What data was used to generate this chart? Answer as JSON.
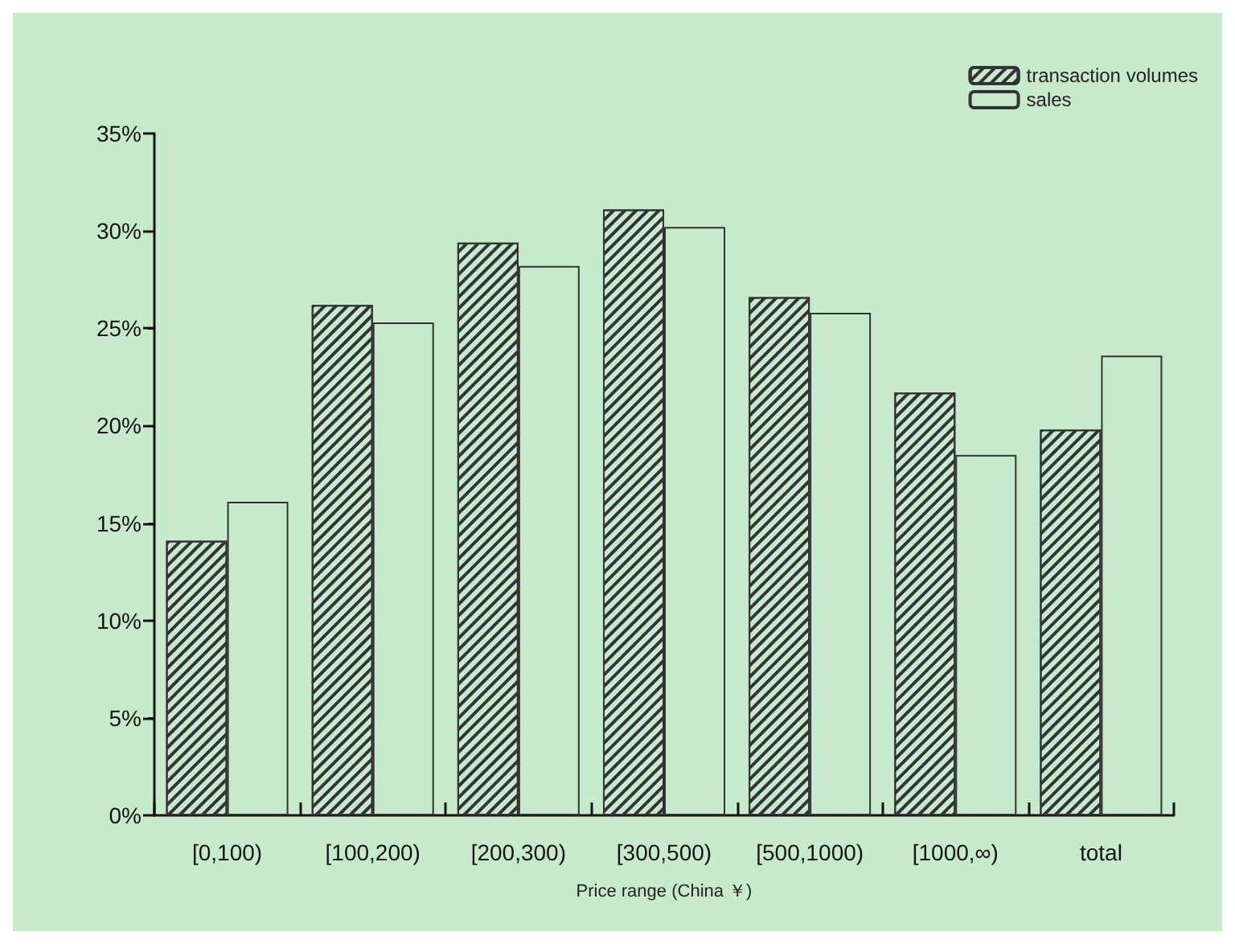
{
  "chart_data": {
    "type": "bar",
    "xlabel": "Price range (China ￥)",
    "categories": [
      "[0,100)",
      "[100,200)",
      "[200,300)",
      "[300,500)",
      "[500,1000)",
      "[1000,∞)",
      "total"
    ],
    "series": [
      {
        "name": "transaction volumes",
        "color": "#c6eacb",
        "values": [
          14.1,
          26.2,
          29.4,
          31.1,
          26.6,
          21.7,
          19.8
        ]
      },
      {
        "name": "sales",
        "color": "#c6eacb",
        "values": [
          16.1,
          25.3,
          28.2,
          30.2,
          25.8,
          18.5,
          23.6
        ]
      }
    ],
    "ylim": [
      0,
      35
    ],
    "yticks": [
      {
        "value": 0,
        "label": "0%"
      },
      {
        "value": 5,
        "label": "5%"
      },
      {
        "value": 10,
        "label": "10%"
      },
      {
        "value": 15,
        "label": "15%"
      },
      {
        "value": 20,
        "label": "20%"
      },
      {
        "value": 25,
        "label": "25%"
      },
      {
        "value": 30,
        "label": "30%"
      },
      {
        "value": 35,
        "label": "35%"
      }
    ],
    "grid": false,
    "legend": "top right"
  }
}
